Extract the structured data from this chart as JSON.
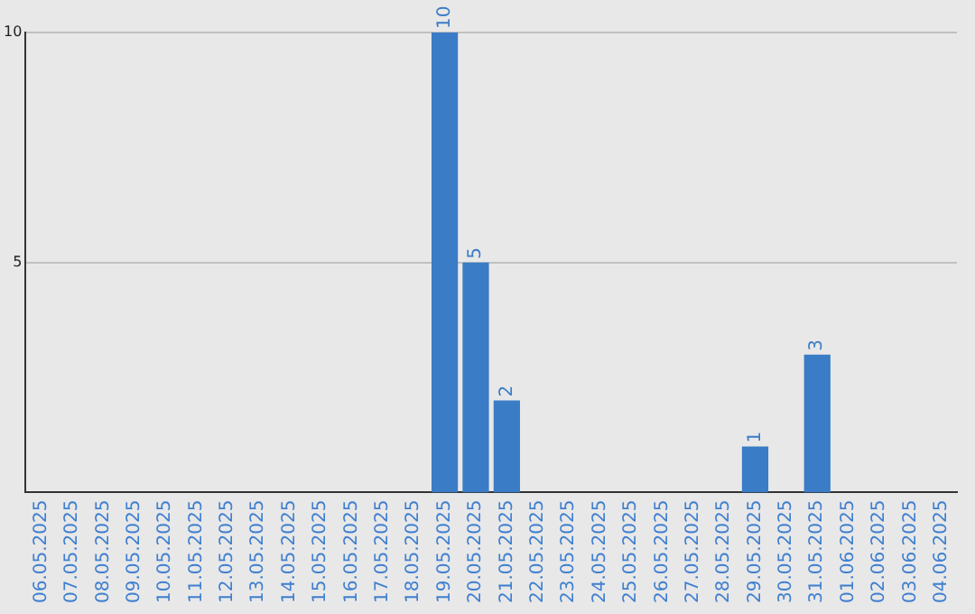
{
  "chart_data": {
    "type": "bar",
    "categories": [
      "06.05.2025",
      "07.05.2025",
      "08.05.2025",
      "09.05.2025",
      "10.05.2025",
      "11.05.2025",
      "12.05.2025",
      "13.05.2025",
      "14.05.2025",
      "15.05.2025",
      "16.05.2025",
      "17.05.2025",
      "18.05.2025",
      "19.05.2025",
      "20.05.2025",
      "21.05.2025",
      "22.05.2025",
      "23.05.2025",
      "24.05.2025",
      "25.05.2025",
      "26.05.2025",
      "27.05.2025",
      "28.05.2025",
      "29.05.2025",
      "30.05.2025",
      "31.05.2025",
      "01.06.2025",
      "02.06.2025",
      "03.06.2025",
      "04.06.2025"
    ],
    "values": [
      0,
      0,
      0,
      0,
      0,
      0,
      0,
      0,
      0,
      0,
      0,
      0,
      0,
      10,
      5,
      2,
      0,
      0,
      0,
      0,
      0,
      0,
      0,
      1,
      0,
      3,
      0,
      0,
      0,
      0
    ],
    "value_labels": [
      null,
      null,
      null,
      null,
      null,
      null,
      null,
      null,
      null,
      null,
      null,
      null,
      null,
      "10",
      "5",
      "2",
      null,
      null,
      null,
      null,
      null,
      null,
      null,
      "1",
      null,
      "3",
      null,
      null,
      null,
      null
    ],
    "color": "#3a7cc6",
    "ylim": [
      0,
      10
    ],
    "yticks": [
      5,
      10
    ],
    "grid": "y"
  }
}
